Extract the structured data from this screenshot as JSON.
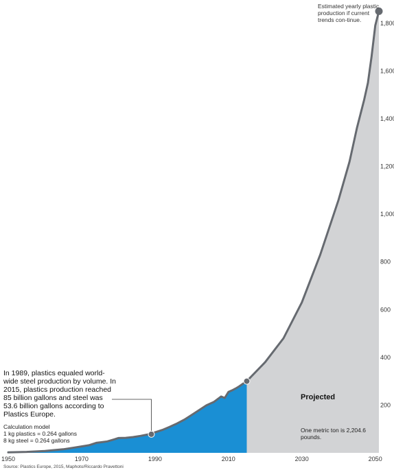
{
  "chart_data": {
    "type": "area",
    "title": "",
    "xlabel": "",
    "ylabel": "",
    "x_ticks": [
      1950,
      1970,
      1990,
      2010,
      2030,
      2050
    ],
    "y_ticks": [
      200,
      400,
      600,
      800,
      1000,
      1200,
      1400,
      1600,
      1800
    ],
    "xlim": [
      1950,
      2051
    ],
    "ylim": [
      0,
      1880
    ],
    "grid": false,
    "series": [
      {
        "name": "",
        "segment": "historical",
        "color": "#1a8fd4",
        "x": [
          1950,
          1955,
          1960,
          1965,
          1968,
          1970,
          1972,
          1974,
          1975,
          1977,
          1979,
          1980,
          1982,
          1984,
          1986,
          1988,
          1990,
          1992,
          1994,
          1996,
          1998,
          2000,
          2002,
          2004,
          2006,
          2008,
          2009,
          2010,
          2011,
          2012,
          2013,
          2014,
          2015
        ],
        "y": [
          2,
          4,
          8,
          15,
          22,
          27,
          32,
          42,
          44,
          48,
          57,
          62,
          63,
          66,
          71,
          77,
          86,
          96,
          109,
          123,
          139,
          159,
          179,
          199,
          213,
          236,
          230,
          255,
          262,
          270,
          279,
          290,
          300
        ]
      },
      {
        "name": "",
        "segment": "projected",
        "color": "#d2d3d5",
        "x": [
          2015,
          2020,
          2025,
          2030,
          2035,
          2040,
          2043,
          2045,
          2047,
          2048,
          2049,
          2050,
          2051
        ],
        "y": [
          300,
          380,
          480,
          630,
          830,
          1060,
          1220,
          1360,
          1480,
          1550,
          1660,
          1790,
          1850
        ]
      }
    ],
    "markers": [
      {
        "x": 1989,
        "y": 78
      },
      {
        "x": 2015,
        "y": 300
      },
      {
        "x": 2051,
        "y": 1850
      }
    ],
    "colors": {
      "line": "#666a70",
      "historical": "#1a8fd4",
      "projected": "#d2d3d5"
    }
  },
  "annotations": {
    "end_note": "Estimated yearly plastic production if current trends con-tinue.",
    "crossover_note": "In 1989, plastics equaled world-wide steel production by volume. In 2015, plastics production reached 85 billion gallons and steel was 53.6 billion gallons according to Plastics Europe.",
    "calc_title": "Calculation model",
    "calc_line1": "1 kg plastics = 0.264 gallons",
    "calc_line2": "8 kg steel = 0.264 gallons",
    "projected_label": "Projected",
    "conversion_note": "One metric ton is 2,204.6 pounds.",
    "source": "Source: Plastics Europe, 2015, Maphoto/Riccardo Pravettoni"
  }
}
